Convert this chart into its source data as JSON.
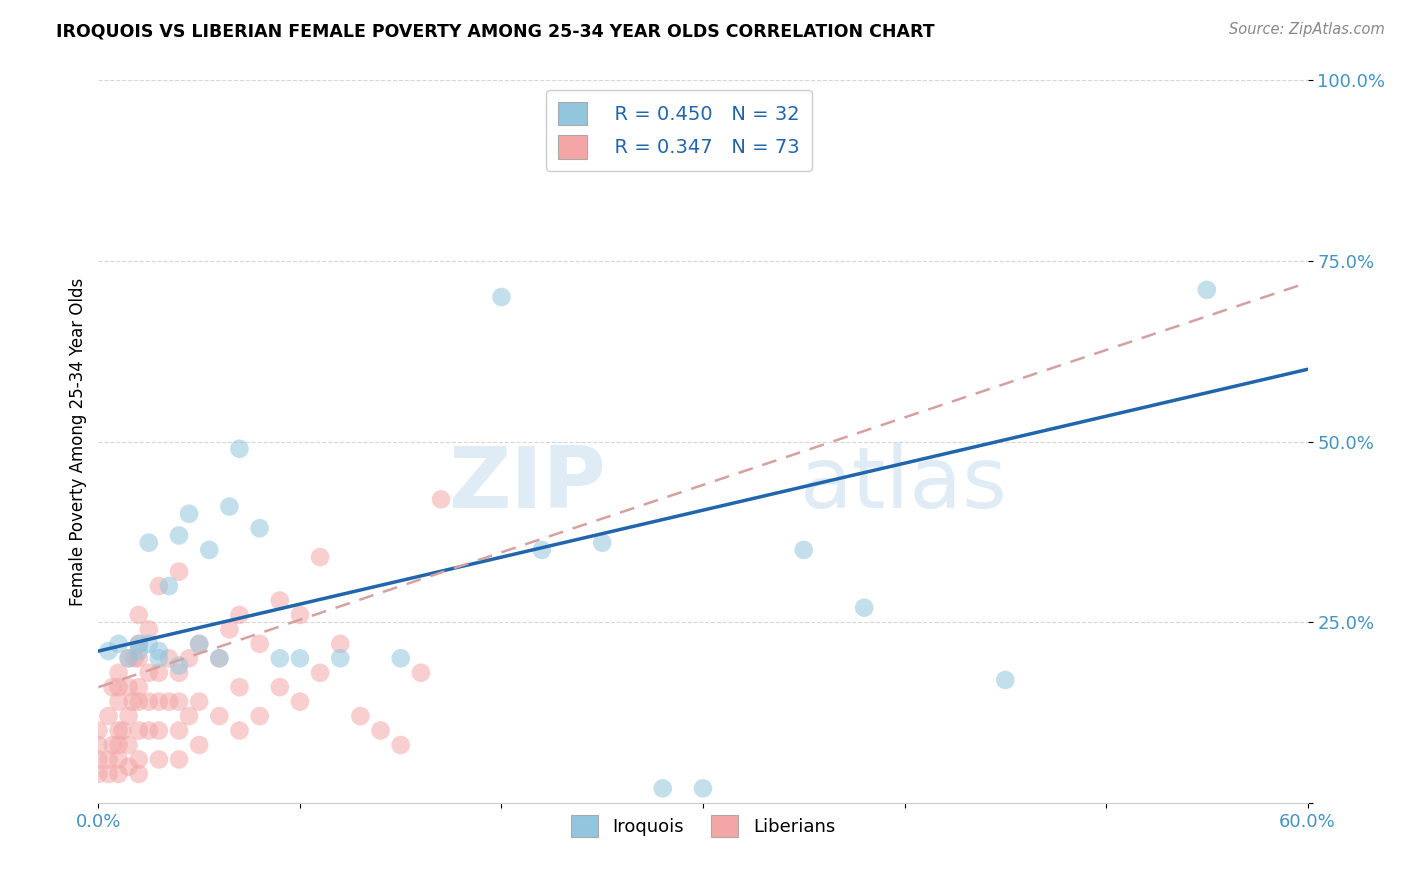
{
  "title": "IROQUOIS VS LIBERIAN FEMALE POVERTY AMONG 25-34 YEAR OLDS CORRELATION CHART",
  "source": "Source: ZipAtlas.com",
  "ylabel": "Female Poverty Among 25-34 Year Olds",
  "xlim": [
    0.0,
    0.6
  ],
  "ylim": [
    0.0,
    1.0
  ],
  "xticks": [
    0.0,
    0.1,
    0.2,
    0.3,
    0.4,
    0.5,
    0.6
  ],
  "xticklabels": [
    "0.0%",
    "",
    "",
    "",
    "",
    "",
    "60.0%"
  ],
  "yticks": [
    0.0,
    0.25,
    0.5,
    0.75,
    1.0
  ],
  "yticklabels": [
    "",
    "25.0%",
    "50.0%",
    "75.0%",
    "100.0%"
  ],
  "iroquois_color": "#92c5de",
  "liberian_color": "#f4a6a6",
  "iroquois_R": 0.45,
  "iroquois_N": 32,
  "liberian_R": 0.347,
  "liberian_N": 73,
  "iroquois_line_color": "#2166ac",
  "liberian_line_color": "#d6a0a0",
  "tick_color": "#4393c3",
  "watermark_text": "ZIPatlas",
  "watermark_color": "#c8dff0",
  "iroquois_x": [
    0.005,
    0.01,
    0.015,
    0.02,
    0.02,
    0.025,
    0.025,
    0.03,
    0.03,
    0.035,
    0.04,
    0.04,
    0.045,
    0.05,
    0.055,
    0.06,
    0.065,
    0.07,
    0.08,
    0.09,
    0.1,
    0.12,
    0.15,
    0.2,
    0.22,
    0.25,
    0.28,
    0.3,
    0.35,
    0.38,
    0.45,
    0.55
  ],
  "iroquois_y": [
    0.21,
    0.22,
    0.2,
    0.21,
    0.22,
    0.22,
    0.36,
    0.2,
    0.21,
    0.3,
    0.19,
    0.37,
    0.4,
    0.22,
    0.35,
    0.2,
    0.41,
    0.49,
    0.38,
    0.2,
    0.2,
    0.2,
    0.2,
    0.7,
    0.35,
    0.36,
    0.02,
    0.02,
    0.35,
    0.27,
    0.17,
    0.71
  ],
  "liberian_x": [
    0.0,
    0.0,
    0.0,
    0.0,
    0.005,
    0.005,
    0.005,
    0.007,
    0.007,
    0.01,
    0.01,
    0.01,
    0.01,
    0.01,
    0.01,
    0.01,
    0.012,
    0.015,
    0.015,
    0.015,
    0.015,
    0.015,
    0.017,
    0.018,
    0.02,
    0.02,
    0.02,
    0.02,
    0.02,
    0.02,
    0.02,
    0.02,
    0.025,
    0.025,
    0.025,
    0.025,
    0.03,
    0.03,
    0.03,
    0.03,
    0.03,
    0.035,
    0.035,
    0.04,
    0.04,
    0.04,
    0.04,
    0.04,
    0.045,
    0.045,
    0.05,
    0.05,
    0.05,
    0.06,
    0.06,
    0.065,
    0.07,
    0.07,
    0.07,
    0.08,
    0.08,
    0.09,
    0.09,
    0.1,
    0.1,
    0.11,
    0.11,
    0.12,
    0.13,
    0.14,
    0.15,
    0.16,
    0.17
  ],
  "liberian_y": [
    0.04,
    0.06,
    0.08,
    0.1,
    0.04,
    0.06,
    0.12,
    0.08,
    0.16,
    0.04,
    0.06,
    0.08,
    0.1,
    0.14,
    0.16,
    0.18,
    0.1,
    0.05,
    0.08,
    0.12,
    0.16,
    0.2,
    0.14,
    0.2,
    0.04,
    0.06,
    0.1,
    0.14,
    0.16,
    0.2,
    0.22,
    0.26,
    0.1,
    0.14,
    0.18,
    0.24,
    0.06,
    0.1,
    0.14,
    0.18,
    0.3,
    0.14,
    0.2,
    0.06,
    0.1,
    0.14,
    0.18,
    0.32,
    0.12,
    0.2,
    0.08,
    0.14,
    0.22,
    0.12,
    0.2,
    0.24,
    0.1,
    0.16,
    0.26,
    0.12,
    0.22,
    0.16,
    0.28,
    0.14,
    0.26,
    0.18,
    0.34,
    0.22,
    0.12,
    0.1,
    0.08,
    0.18,
    0.42
  ],
  "iroquois_line_x0": 0.0,
  "iroquois_line_y0": 0.21,
  "iroquois_line_x1": 0.6,
  "iroquois_line_y1": 0.6,
  "liberian_line_x0": 0.0,
  "liberian_line_y0": 0.16,
  "liberian_line_x1": 0.6,
  "liberian_line_y1": 0.72
}
